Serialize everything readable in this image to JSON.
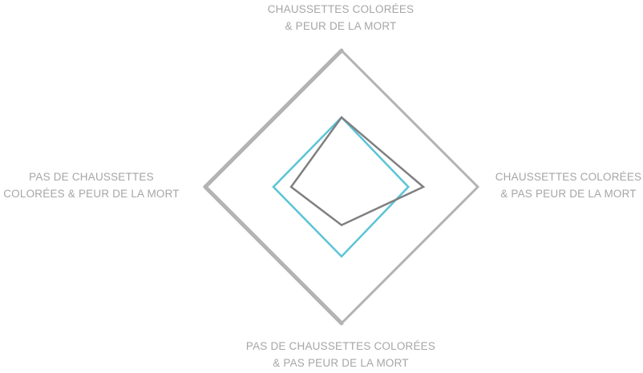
{
  "chart_data": {
    "type": "radar",
    "axes": [
      {
        "id": "top",
        "label_lines": [
          "CHAUSSETTES COLORÉES",
          "& PEUR DE LA MORT"
        ]
      },
      {
        "id": "right",
        "label_lines": [
          "CHAUSSETTES COLORÉES",
          "& PAS PEUR DE LA MORT"
        ]
      },
      {
        "id": "bottom",
        "label_lines": [
          "PAS DE CHAUSSETTES COLORÉES",
          "& PAS PEUR DE LA MORT"
        ]
      },
      {
        "id": "left",
        "label_lines": [
          "PAS DE CHAUSSETTES",
          "COLORÉES & PEUR DE LA MORT"
        ]
      }
    ],
    "range": [
      0,
      1
    ],
    "series": [
      {
        "color": "#5bc4d6",
        "values": [
          0.51,
          0.49,
          0.51,
          0.5
        ]
      },
      {
        "color": "#7f7f7f",
        "values": [
          0.51,
          0.6,
          0.28,
          0.37
        ]
      }
    ],
    "frame_color": "#b3b3b3",
    "legend": "none"
  }
}
